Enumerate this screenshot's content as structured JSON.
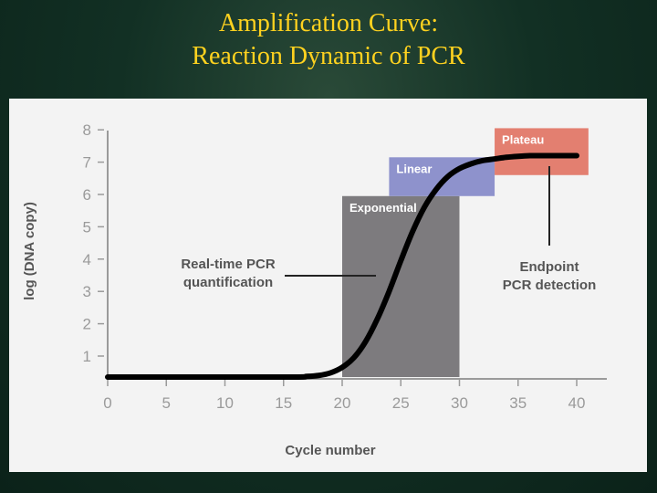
{
  "slide": {
    "title_line1": "Amplification Curve:",
    "title_line2": "Reaction Dynamic of PCR"
  },
  "chart_data": {
    "type": "line",
    "title": "",
    "xlabel": "Cycle number",
    "ylabel": "log (DNA copy)",
    "xlim": [
      0,
      43
    ],
    "ylim": [
      0.7,
      8
    ],
    "xticks": [
      0,
      5,
      10,
      15,
      20,
      25,
      30,
      35,
      40
    ],
    "yticks": [
      1,
      2,
      3,
      4,
      5,
      6,
      7,
      8
    ],
    "grid": false,
    "series": [
      {
        "x": [
          0,
          15,
          17,
          18,
          19,
          20,
          21,
          22,
          23,
          24,
          25,
          26,
          27,
          28,
          29,
          30,
          31,
          32,
          33,
          34,
          35,
          36,
          37,
          38,
          39,
          40
        ],
        "y": [
          0.35,
          0.35,
          0.37,
          0.4,
          0.48,
          0.65,
          0.95,
          1.45,
          2.15,
          3.0,
          3.95,
          4.85,
          5.6,
          6.15,
          6.55,
          6.8,
          6.95,
          7.05,
          7.1,
          7.15,
          7.18,
          7.2,
          7.2,
          7.2,
          7.2,
          7.2
        ],
        "color": "#000000"
      }
    ],
    "regions": [
      {
        "label": "Exponential",
        "x_start": 20,
        "x_end": 30,
        "y_start": 0.35,
        "y_end": 5.95,
        "color": "#7d7b7e"
      },
      {
        "label": "Linear",
        "x_start": 24,
        "x_end": 33,
        "y_start": 5.95,
        "y_end": 7.15,
        "color": "#8e92cc"
      },
      {
        "label": "Plateau",
        "x_start": 33,
        "x_end": 41,
        "y_start": 6.6,
        "y_end": 8.05,
        "color": "#e37f70"
      }
    ],
    "annotations": [
      {
        "line1": "Real-time PCR",
        "line2": "quantification"
      },
      {
        "line1": "Endpoint",
        "line2": "PCR detection"
      }
    ]
  }
}
